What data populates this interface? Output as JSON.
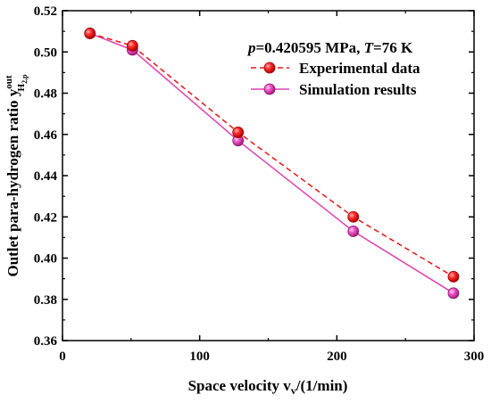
{
  "chart_data": {
    "type": "line",
    "title": "",
    "xlabel": "Space velocity v",
    "xlabel_sub": "v",
    "xlabel_unit": "/(1/min)",
    "ylabel": "Outlet para-hydrogen ratio y",
    "ylabel_sup": "out",
    "ylabel_sub": "H",
    "ylabel_sub2": "2,p",
    "xlim": [
      0,
      300
    ],
    "ylim": [
      0.36,
      0.52
    ],
    "xticks": [
      0,
      100,
      200,
      300
    ],
    "yticks": [
      0.36,
      0.38,
      0.4,
      0.42,
      0.44,
      0.46,
      0.48,
      0.5,
      0.52
    ],
    "ytick_labels": [
      "0.36",
      "0.38",
      "0.40",
      "0.42",
      "0.44",
      "0.46",
      "0.48",
      "0.50",
      "0.52"
    ],
    "condition": {
      "p_symbol": "p",
      "p_text": "=0.420595 MPa, ",
      "t_symbol": "T",
      "t_text": "=76 K"
    },
    "legend_position": "top-right",
    "series": [
      {
        "name": "Experimental data",
        "color": "#ee1111",
        "line_style": "dashed",
        "marker": "circle",
        "x": [
          20,
          51,
          128,
          212,
          285
        ],
        "y": [
          0.509,
          0.503,
          0.461,
          0.42,
          0.391
        ]
      },
      {
        "name": "Simulation results",
        "color": "#e040b0",
        "line_style": "solid",
        "marker": "circle",
        "x": [
          20,
          51,
          128,
          212,
          285
        ],
        "y": [
          0.509,
          0.501,
          0.457,
          0.413,
          0.383
        ]
      }
    ]
  }
}
